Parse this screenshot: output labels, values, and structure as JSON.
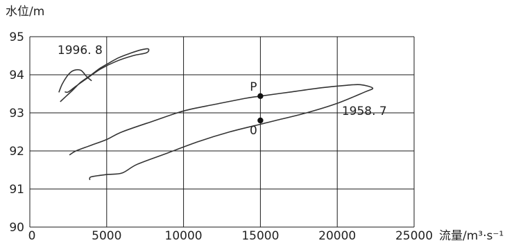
{
  "chart_data": {
    "type": "line",
    "ylabel": "水位/m",
    "xlabel": "流量/m³·s⁻¹",
    "xlim": [
      0,
      25000
    ],
    "ylim": [
      90,
      95
    ],
    "x_ticks": [
      "0",
      "5000",
      "10000",
      "15000",
      "20000",
      "25000"
    ],
    "y_ticks": [
      "90",
      "91",
      "92",
      "93",
      "94",
      "95"
    ],
    "grid": true,
    "series": [
      {
        "name": "1996.8",
        "x": [
          2000,
          2400,
          2800,
          3300,
          4000,
          4600,
          5200,
          5800,
          6500,
          7200,
          7700,
          7600,
          6700,
          5600,
          4600,
          3700,
          3000,
          2500,
          2300
        ],
        "y": [
          93.3,
          93.45,
          93.6,
          93.8,
          94.0,
          94.18,
          94.32,
          94.45,
          94.56,
          94.65,
          94.68,
          94.58,
          94.5,
          94.35,
          94.15,
          93.9,
          93.7,
          93.55,
          93.55
        ]
      },
      {
        "name": "",
        "x": [
          1900,
          2100,
          2400,
          2700,
          3000,
          3300,
          3500,
          3700,
          4000
        ],
        "y": [
          93.55,
          93.75,
          93.95,
          94.08,
          94.13,
          94.12,
          94.05,
          93.95,
          93.85
        ]
      },
      {
        "name": "1958.7",
        "x": [
          2600,
          3000,
          4000,
          5000,
          6000,
          8000,
          10000,
          12000,
          14000,
          15000,
          17000,
          19000,
          20500,
          21500,
          22300,
          21800,
          20000,
          18000,
          16000,
          15000,
          13000,
          11000,
          9000,
          7000,
          6000,
          5000,
          4000,
          3900
        ],
        "y": [
          91.9,
          92.0,
          92.15,
          92.3,
          92.5,
          92.78,
          93.05,
          93.22,
          93.38,
          93.44,
          93.55,
          93.66,
          93.72,
          93.74,
          93.65,
          93.55,
          93.25,
          93.0,
          92.8,
          92.7,
          92.5,
          92.25,
          91.95,
          91.65,
          91.42,
          91.38,
          91.32,
          91.25
        ]
      }
    ],
    "points": [
      {
        "label": "P",
        "x": 15000,
        "y": 93.44
      },
      {
        "label": "0",
        "x": 15000,
        "y": 92.8
      }
    ],
    "annotations": [
      {
        "text": "1996. 8",
        "x": 1800,
        "y": 94.55
      },
      {
        "text": "1958. 7",
        "x": 20300,
        "y": 92.95
      }
    ]
  }
}
